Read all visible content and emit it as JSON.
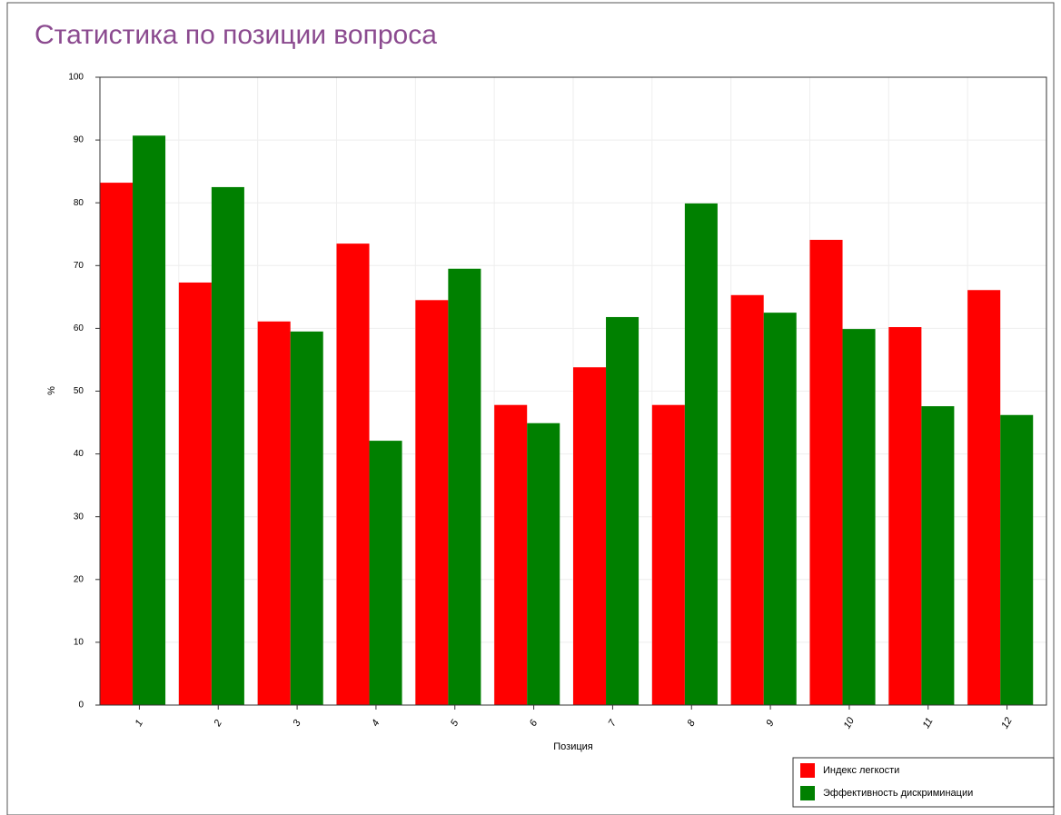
{
  "chart_data": {
    "type": "bar",
    "title": "Статистика по позиции вопроса",
    "xlabel": "Позиция",
    "ylabel": "%",
    "categories": [
      "1",
      "2",
      "3",
      "4",
      "5",
      "6",
      "7",
      "8",
      "9",
      "10",
      "11",
      "12"
    ],
    "series": [
      {
        "name": "Индекс легкости",
        "color": "#ff0000",
        "values": [
          83.2,
          67.3,
          61.1,
          73.5,
          64.5,
          47.8,
          53.8,
          47.8,
          65.3,
          74.1,
          60.2,
          66.1
        ]
      },
      {
        "name": "Эффективность дискриминации",
        "color": "#008000",
        "values": [
          90.7,
          82.5,
          59.5,
          42.1,
          69.5,
          44.9,
          61.8,
          79.9,
          62.5,
          59.9,
          47.6,
          46.2
        ]
      }
    ],
    "ylim": [
      0,
      100
    ],
    "yticks": [
      0,
      10,
      20,
      30,
      40,
      50,
      60,
      70,
      80,
      90,
      100
    ],
    "grid": true,
    "legend": "bottom-right"
  }
}
